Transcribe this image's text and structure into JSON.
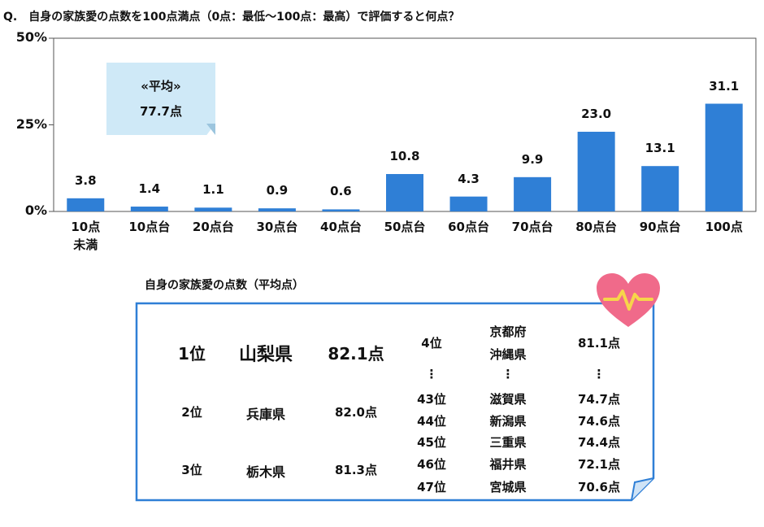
{
  "chart_data": {
    "type": "bar",
    "title": "Q.　自身の家族愛の点数を100点満点（0点：最低～100点：最高）で評価すると何点？",
    "categories": [
      "10点\n未満",
      "10点台",
      "20点台",
      "30点台",
      "40点台",
      "50点台",
      "60点台",
      "70点台",
      "80点台",
      "90点台",
      "100点"
    ],
    "values": [
      3.8,
      1.4,
      1.1,
      0.9,
      0.6,
      10.8,
      4.3,
      9.9,
      23.0,
      13.1,
      31.1
    ],
    "value_labels": [
      "3.8",
      "1.4",
      "1.1",
      "0.9",
      "0.6",
      "10.8",
      "4.3",
      "9.9",
      "23.0",
      "13.1",
      "31.1"
    ],
    "yticks": [
      "50%",
      "25%",
      "0%"
    ],
    "ytick_values": [
      50,
      25,
      0
    ],
    "ylim": [
      0,
      50
    ],
    "grid": false,
    "bar_color": "#2f7fd6",
    "annotation": {
      "heading": "«平均»",
      "value": "77.7点"
    }
  },
  "ranking": {
    "title": "自身の家族愛の点数（平均点）",
    "top": [
      {
        "rank": "1位",
        "pref": "山梨県",
        "score": "82.1点"
      },
      {
        "rank": "2位",
        "pref": "兵庫県",
        "score": "82.0点"
      },
      {
        "rank": "3位",
        "pref": "栃木県",
        "score": "81.3点"
      }
    ],
    "fourth": {
      "rank": "4位",
      "prefs": [
        "京都府",
        "沖縄県"
      ],
      "score": "81.1点"
    },
    "ellipsis": "⋮",
    "bottom": [
      {
        "rank": "43位",
        "pref": "滋賀県",
        "score": "74.7点"
      },
      {
        "rank": "44位",
        "pref": "新潟県",
        "score": "74.6点"
      },
      {
        "rank": "45位",
        "pref": "三重県",
        "score": "74.4点"
      },
      {
        "rank": "46位",
        "pref": "福井県",
        "score": "72.1点"
      },
      {
        "rank": "47位",
        "pref": "宮城県",
        "score": "70.6点"
      }
    ],
    "frame_color": "#2f7fd6",
    "heart_color": "#f06a8a"
  }
}
